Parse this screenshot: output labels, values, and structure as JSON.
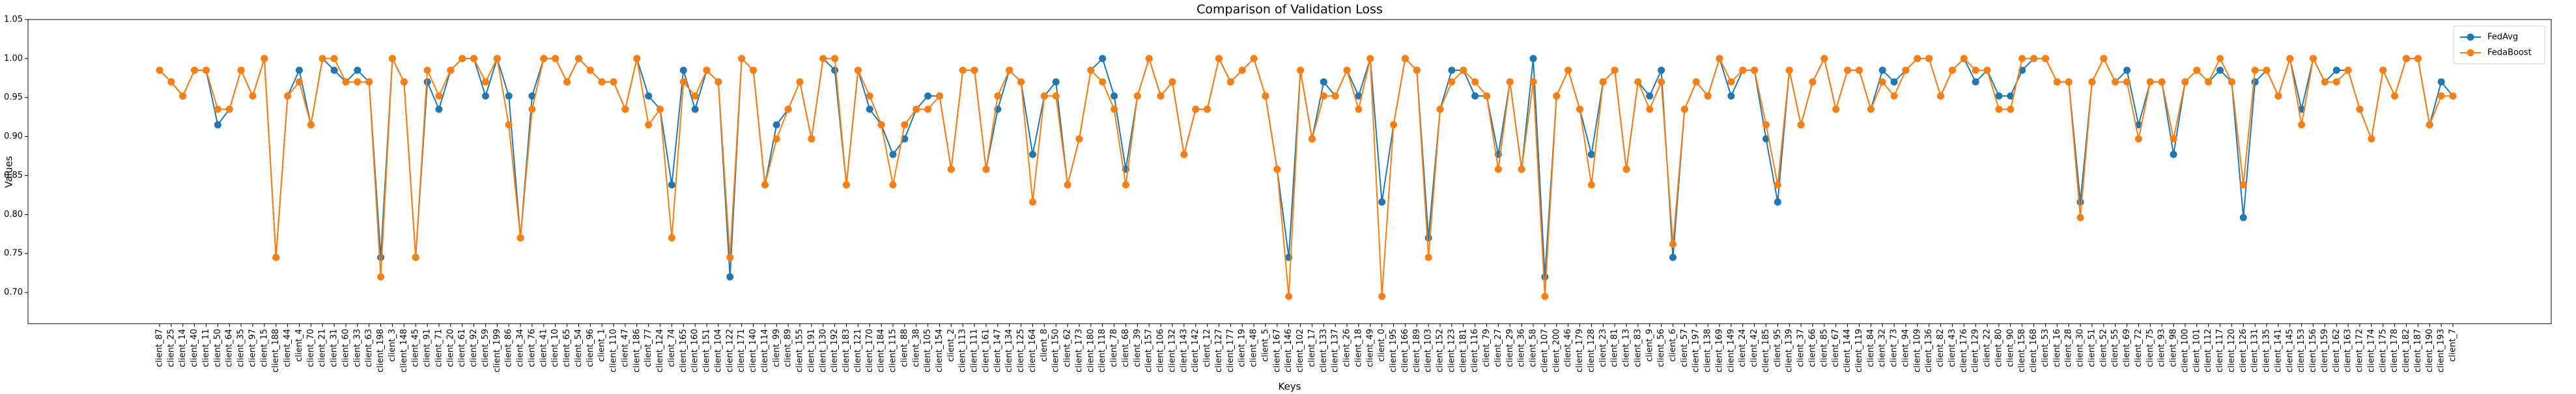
{
  "chart_data": {
    "type": "line",
    "title": "Comparison of Validation Loss",
    "xlabel": "Keys",
    "ylabel": "Values",
    "categories": [
      "client_87",
      "client_25",
      "client_14",
      "client_40",
      "client_11",
      "client_50",
      "client_64",
      "client_35",
      "client_97",
      "client_15",
      "client_188",
      "client_44",
      "client_4",
      "client_70",
      "client_21",
      "client_31",
      "client_60",
      "client_33",
      "client_63",
      "client_198",
      "client_3",
      "client_148",
      "client_45",
      "client_91",
      "client_71",
      "client_20",
      "client_61",
      "client_92",
      "client_59",
      "client_199",
      "client_86",
      "client_34",
      "client_76",
      "client_41",
      "client_10",
      "client_65",
      "client_54",
      "client_96",
      "client_1",
      "client_110",
      "client_47",
      "client_186",
      "client_77",
      "client_124",
      "client_74",
      "client_165",
      "client_160",
      "client_151",
      "client_104",
      "client_122",
      "client_171",
      "client_140",
      "client_114",
      "client_99",
      "client_89",
      "client_155",
      "client_191",
      "client_130",
      "client_192",
      "client_183",
      "client_121",
      "client_170",
      "client_184",
      "client_115",
      "client_88",
      "client_38",
      "client_105",
      "client_154",
      "client_2",
      "client_113",
      "client_111",
      "client_161",
      "client_147",
      "client_134",
      "client_125",
      "client_164",
      "client_8",
      "client_150",
      "client_62",
      "client_173",
      "client_180",
      "client_118",
      "client_78",
      "client_68",
      "client_39",
      "client_157",
      "client_106",
      "client_132",
      "client_143",
      "client_142",
      "client_12",
      "client_127",
      "client_177",
      "client_19",
      "client_48",
      "client_5",
      "client_167",
      "client_146",
      "client_102",
      "client_17",
      "client_133",
      "client_137",
      "client_26",
      "client_18",
      "client_49",
      "client_0",
      "client_195",
      "client_166",
      "client_189",
      "client_103",
      "client_152",
      "client_123",
      "client_181",
      "client_116",
      "client_79",
      "client_27",
      "client_29",
      "client_36",
      "client_58",
      "client_107",
      "client_200",
      "client_46",
      "client_179",
      "client_128",
      "client_23",
      "client_81",
      "client_13",
      "client_83",
      "client_9",
      "client_56",
      "client_6",
      "client_57",
      "client_197",
      "client_138",
      "client_169",
      "client_149",
      "client_24",
      "client_42",
      "client_185",
      "client_95",
      "client_139",
      "client_37",
      "client_66",
      "client_85",
      "client_67",
      "client_144",
      "client_119",
      "client_84",
      "client_32",
      "client_73",
      "client_94",
      "client_109",
      "client_136",
      "client_82",
      "client_43",
      "client_176",
      "client_129",
      "client_22",
      "client_80",
      "client_90",
      "client_158",
      "client_168",
      "client_53",
      "client_16",
      "client_28",
      "client_30",
      "client_51",
      "client_52",
      "client_55",
      "client_69",
      "client_72",
      "client_75",
      "client_93",
      "client_98",
      "client_100",
      "client_101",
      "client_112",
      "client_117",
      "client_120",
      "client_126",
      "client_131",
      "client_135",
      "client_141",
      "client_145",
      "client_153",
      "client_156",
      "client_159",
      "client_162",
      "client_163",
      "client_172",
      "client_174",
      "client_175",
      "client_178",
      "client_182",
      "client_187",
      "client_190",
      "client_193",
      "client_7"
    ],
    "series": [
      {
        "name": "FedAvg",
        "color": "#1f77b4",
        "values": [
          0.985,
          0.97,
          0.952,
          0.985,
          0.985,
          0.915,
          0.935,
          0.985,
          0.952,
          1.0,
          0.745,
          0.952,
          0.985,
          0.915,
          1.0,
          0.985,
          0.97,
          0.985,
          0.97,
          0.745,
          1.0,
          0.97,
          0.745,
          0.97,
          0.935,
          0.985,
          1.0,
          1.0,
          0.952,
          1.0,
          0.952,
          0.77,
          0.952,
          1.0,
          1.0,
          0.97,
          1.0,
          0.985,
          0.97,
          0.97,
          0.935,
          1.0,
          0.952,
          0.935,
          0.838,
          0.985,
          0.935,
          0.985,
          0.97,
          0.72,
          1.0,
          0.985,
          0.838,
          0.915,
          0.935,
          0.97,
          0.897,
          1.0,
          0.985,
          0.838,
          0.985,
          0.935,
          0.915,
          0.877,
          0.897,
          0.935,
          0.952,
          0.952,
          0.858,
          0.985,
          0.985,
          0.858,
          0.935,
          0.985,
          0.97,
          0.877,
          0.952,
          0.97,
          0.838,
          0.897,
          0.985,
          1.0,
          0.952,
          0.858,
          0.952,
          1.0,
          0.952,
          0.97,
          0.877,
          0.935,
          0.935,
          1.0,
          0.97,
          0.985,
          1.0,
          0.952,
          0.858,
          0.745,
          0.985,
          0.897,
          0.97,
          0.952,
          0.985,
          0.952,
          1.0,
          0.816,
          0.915,
          1.0,
          0.985,
          0.77,
          0.935,
          0.985,
          0.985,
          0.952,
          0.952,
          0.877,
          0.97,
          0.858,
          1.0,
          0.72,
          0.952,
          0.985,
          0.935,
          0.877,
          0.97,
          0.985,
          0.858,
          0.97,
          0.952,
          0.985,
          0.745,
          0.935,
          0.97,
          0.952,
          1.0,
          0.952,
          0.985,
          0.985,
          0.897,
          0.816,
          0.985,
          0.915,
          0.97,
          1.0,
          0.935,
          0.985,
          0.985,
          0.935,
          0.985,
          0.97,
          0.985,
          1.0,
          1.0,
          0.952,
          0.985,
          1.0,
          0.97,
          0.985,
          0.952,
          0.952,
          0.985,
          1.0,
          1.0,
          0.97,
          0.97,
          0.816,
          0.97,
          1.0,
          0.97,
          0.985,
          0.915,
          0.97,
          0.97,
          0.877,
          0.97,
          0.985,
          0.97,
          0.985,
          0.97,
          0.796,
          0.97,
          0.985,
          0.952,
          1.0,
          0.935,
          1.0,
          0.97,
          0.985,
          0.985,
          0.935,
          0.897,
          0.985,
          0.952,
          1.0,
          1.0,
          0.915,
          0.97,
          0.952
        ]
      },
      {
        "name": "FedaBoost",
        "color": "#ff7f0e",
        "values": [
          0.985,
          0.97,
          0.952,
          0.985,
          0.985,
          0.935,
          0.935,
          0.985,
          0.952,
          1.0,
          0.745,
          0.952,
          0.97,
          0.915,
          1.0,
          1.0,
          0.97,
          0.97,
          0.97,
          0.72,
          1.0,
          0.97,
          0.745,
          0.985,
          0.952,
          0.985,
          1.0,
          1.0,
          0.97,
          1.0,
          0.915,
          0.77,
          0.935,
          1.0,
          1.0,
          0.97,
          1.0,
          0.985,
          0.97,
          0.97,
          0.935,
          1.0,
          0.915,
          0.935,
          0.77,
          0.97,
          0.952,
          0.985,
          0.97,
          0.745,
          1.0,
          0.985,
          0.838,
          0.897,
          0.935,
          0.97,
          0.897,
          1.0,
          1.0,
          0.838,
          0.985,
          0.952,
          0.915,
          0.838,
          0.915,
          0.935,
          0.935,
          0.952,
          0.858,
          0.985,
          0.985,
          0.858,
          0.952,
          0.985,
          0.97,
          0.816,
          0.952,
          0.952,
          0.838,
          0.897,
          0.985,
          0.97,
          0.935,
          0.838,
          0.952,
          1.0,
          0.952,
          0.97,
          0.877,
          0.935,
          0.935,
          1.0,
          0.97,
          0.985,
          1.0,
          0.952,
          0.858,
          0.695,
          0.985,
          0.897,
          0.952,
          0.952,
          0.985,
          0.935,
          1.0,
          0.695,
          0.915,
          1.0,
          0.985,
          0.745,
          0.935,
          0.97,
          0.985,
          0.97,
          0.952,
          0.858,
          0.97,
          0.858,
          0.97,
          0.695,
          0.952,
          0.985,
          0.935,
          0.838,
          0.97,
          0.985,
          0.858,
          0.97,
          0.935,
          0.97,
          0.762,
          0.935,
          0.97,
          0.952,
          1.0,
          0.97,
          0.985,
          0.985,
          0.915,
          0.838,
          0.985,
          0.915,
          0.97,
          1.0,
          0.935,
          0.985,
          0.985,
          0.935,
          0.97,
          0.952,
          0.985,
          1.0,
          1.0,
          0.952,
          0.985,
          1.0,
          0.985,
          0.985,
          0.935,
          0.935,
          1.0,
          1.0,
          1.0,
          0.97,
          0.97,
          0.796,
          0.97,
          1.0,
          0.97,
          0.97,
          0.897,
          0.97,
          0.97,
          0.897,
          0.97,
          0.985,
          0.97,
          1.0,
          0.97,
          0.838,
          0.985,
          0.985,
          0.952,
          1.0,
          0.915,
          1.0,
          0.97,
          0.97,
          0.985,
          0.935,
          0.897,
          0.985,
          0.952,
          1.0,
          1.0,
          0.915,
          0.952,
          0.952
        ]
      }
    ],
    "ylim": [
      0.66,
      1.05
    ],
    "yticks": [
      {
        "value": 0.7,
        "label": "0.70"
      },
      {
        "value": 0.75,
        "label": "0.75"
      },
      {
        "value": 0.8,
        "label": "0.80"
      },
      {
        "value": 0.85,
        "label": "0.85"
      },
      {
        "value": 0.9,
        "label": "0.90"
      },
      {
        "value": 0.95,
        "label": "0.95"
      },
      {
        "value": 1.0,
        "label": "1.00"
      },
      {
        "value": 1.05,
        "label": "1.05"
      }
    ],
    "grid": false,
    "legend": "upper right",
    "markers": true
  }
}
